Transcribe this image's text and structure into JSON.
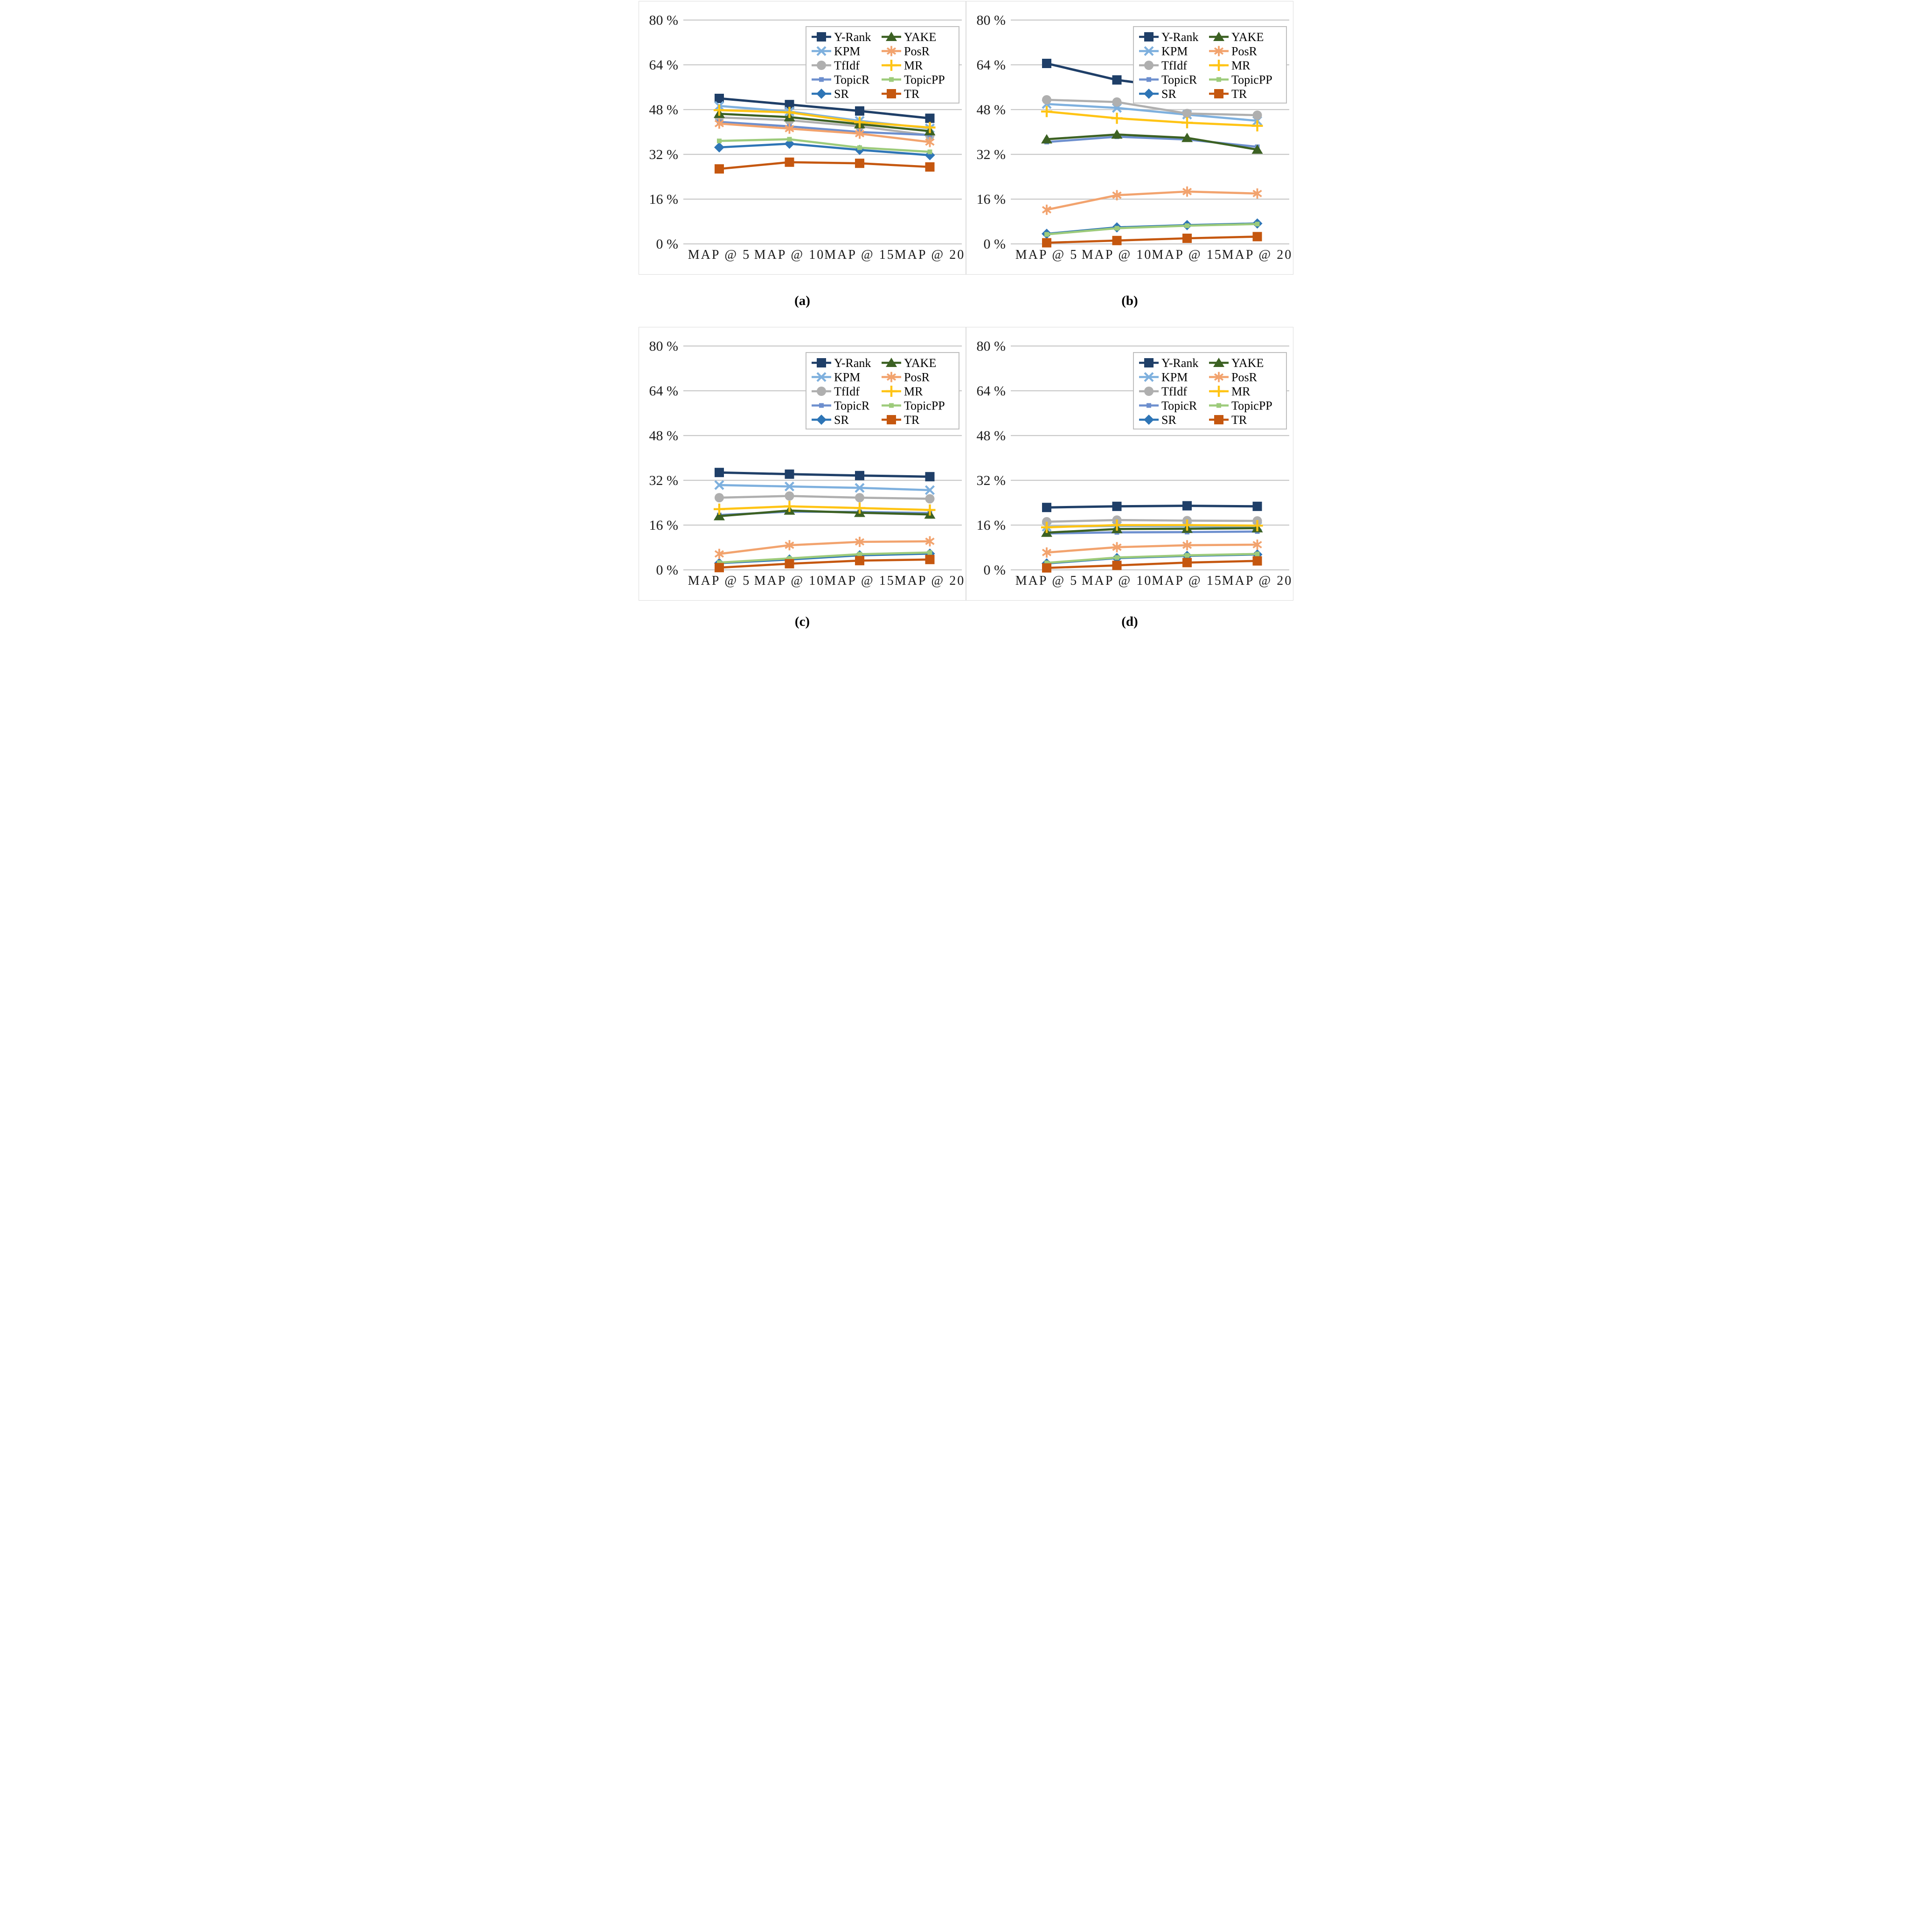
{
  "figure": {
    "captions": {
      "a": "(a)",
      "b": "(b)",
      "c": "(c)",
      "d": "(d)"
    },
    "y_axis_labels": [
      "80 %",
      "64 %",
      "48 %",
      "32 %",
      "16 %",
      "0 %"
    ],
    "x_categories": [
      "MAP @ 5",
      "MAP @ 10",
      "MAP @ 15",
      "MAP @ 20"
    ],
    "grid_color": "#c9c9c9",
    "legend_border_color": "#bfbfbf",
    "legend_rows": [
      [
        "Y-Rank",
        "YAKE"
      ],
      [
        "KPM",
        "PosR"
      ],
      [
        "TfIdf",
        "MR"
      ],
      [
        "TopicR",
        "TopicPP"
      ],
      [
        "SR",
        "TR"
      ]
    ],
    "series_styles": {
      "Y-Rank": {
        "color": "#1f3f68",
        "marker": "square"
      },
      "KPM": {
        "color": "#7eb0de",
        "marker": "x"
      },
      "TfIdf": {
        "color": "#afafaf",
        "marker": "circle"
      },
      "TopicR": {
        "color": "#6d8fce",
        "marker": "small-square"
      },
      "SR": {
        "color": "#2e75b6",
        "marker": "diamond"
      },
      "YAKE": {
        "color": "#3c6123",
        "marker": "triangle"
      },
      "PosR": {
        "color": "#f2a36e",
        "marker": "asterisk"
      },
      "MR": {
        "color": "#ffc415",
        "marker": "plus"
      },
      "TopicPP": {
        "color": "#9dcb7b",
        "marker": "small-square"
      },
      "TR": {
        "color": "#c5570f",
        "marker": "square"
      }
    }
  },
  "chart_data": [
    {
      "type": "line",
      "panel": "a",
      "title": "",
      "xlabel": "",
      "ylabel": "",
      "ylim": [
        0,
        80
      ],
      "ytick_step": 16,
      "grid": true,
      "legend_position": "top-right",
      "categories": [
        "MAP @ 5",
        "MAP @ 10",
        "MAP @ 15",
        "MAP @ 20"
      ],
      "series": [
        {
          "name": "Y-Rank",
          "values": [
            52.0,
            49.8,
            47.5,
            44.9
          ]
        },
        {
          "name": "KPM",
          "values": [
            49.3,
            47.3,
            44.0,
            41.3
          ]
        },
        {
          "name": "TfIdf",
          "values": [
            45.2,
            44.2,
            42.0,
            38.8
          ]
        },
        {
          "name": "TopicR",
          "values": [
            43.6,
            42.0,
            40.0,
            38.9
          ]
        },
        {
          "name": "SR",
          "values": [
            34.5,
            35.8,
            33.6,
            31.7
          ]
        },
        {
          "name": "YAKE",
          "values": [
            46.5,
            45.3,
            42.8,
            40.3
          ]
        },
        {
          "name": "PosR",
          "values": [
            43.0,
            41.2,
            39.4,
            36.4
          ]
        },
        {
          "name": "MR",
          "values": [
            47.8,
            47.0,
            43.5,
            41.6
          ]
        },
        {
          "name": "TopicPP",
          "values": [
            36.8,
            37.4,
            34.4,
            32.9
          ]
        },
        {
          "name": "TR",
          "values": [
            26.8,
            29.2,
            28.8,
            27.5
          ]
        }
      ]
    },
    {
      "type": "line",
      "panel": "b",
      "title": "",
      "xlabel": "",
      "ylabel": "",
      "ylim": [
        0,
        80
      ],
      "ytick_step": 16,
      "grid": true,
      "legend_position": "top-right",
      "categories": [
        "MAP @ 5",
        "MAP @ 10",
        "MAP @ 15",
        "MAP @ 20"
      ],
      "series": [
        {
          "name": "Y-Rank",
          "values": [
            64.5,
            58.6,
            55.3,
            52.8
          ]
        },
        {
          "name": "KPM",
          "values": [
            50.0,
            48.6,
            46.2,
            44.0
          ]
        },
        {
          "name": "TfIdf",
          "values": [
            51.5,
            50.7,
            46.6,
            46.0
          ]
        },
        {
          "name": "TopicR",
          "values": [
            36.4,
            38.3,
            37.3,
            34.7
          ]
        },
        {
          "name": "SR",
          "values": [
            3.6,
            5.9,
            6.7,
            7.3
          ]
        },
        {
          "name": "YAKE",
          "values": [
            37.4,
            39.1,
            37.9,
            33.7
          ]
        },
        {
          "name": "PosR",
          "values": [
            12.2,
            17.4,
            18.7,
            18.0
          ]
        },
        {
          "name": "MR",
          "values": [
            47.3,
            44.9,
            43.3,
            42.2
          ]
        },
        {
          "name": "TopicPP",
          "values": [
            3.4,
            5.6,
            6.5,
            7.1
          ]
        },
        {
          "name": "TR",
          "values": [
            0.4,
            1.2,
            2.0,
            2.6
          ]
        }
      ]
    },
    {
      "type": "line",
      "panel": "c",
      "title": "",
      "xlabel": "",
      "ylabel": "",
      "ylim": [
        0,
        80
      ],
      "ytick_step": 16,
      "grid": true,
      "legend_position": "top-right",
      "categories": [
        "MAP @ 5",
        "MAP @ 10",
        "MAP @ 15",
        "MAP @ 20"
      ],
      "series": [
        {
          "name": "Y-Rank",
          "values": [
            34.8,
            34.2,
            33.7,
            33.3
          ]
        },
        {
          "name": "KPM",
          "values": [
            30.3,
            29.8,
            29.3,
            28.5
          ]
        },
        {
          "name": "TfIdf",
          "values": [
            25.8,
            26.4,
            25.8,
            25.4
          ]
        },
        {
          "name": "TopicR",
          "values": [
            19.6,
            20.8,
            20.7,
            20.3
          ]
        },
        {
          "name": "SR",
          "values": [
            2.4,
            3.7,
            5.2,
            5.8
          ]
        },
        {
          "name": "YAKE",
          "values": [
            19.2,
            21.2,
            20.4,
            19.8
          ]
        },
        {
          "name": "PosR",
          "values": [
            5.7,
            8.8,
            10.0,
            10.2
          ]
        },
        {
          "name": "MR",
          "values": [
            21.7,
            22.7,
            22.1,
            21.4
          ]
        },
        {
          "name": "TopicPP",
          "values": [
            2.6,
            4.1,
            5.6,
            6.2
          ]
        },
        {
          "name": "TR",
          "values": [
            0.8,
            2.2,
            3.3,
            3.7
          ]
        }
      ]
    },
    {
      "type": "line",
      "panel": "d",
      "title": "",
      "xlabel": "",
      "ylabel": "",
      "ylim": [
        0,
        80
      ],
      "ytick_step": 16,
      "grid": true,
      "legend_position": "top-right",
      "categories": [
        "MAP @ 5",
        "MAP @ 10",
        "MAP @ 15",
        "MAP @ 20"
      ],
      "series": [
        {
          "name": "Y-Rank",
          "values": [
            22.3,
            22.7,
            22.9,
            22.7
          ]
        },
        {
          "name": "KPM",
          "values": [
            15.4,
            15.7,
            15.6,
            15.5
          ]
        },
        {
          "name": "TfIdf",
          "values": [
            17.2,
            17.8,
            17.6,
            17.5
          ]
        },
        {
          "name": "TopicR",
          "values": [
            13.0,
            13.4,
            13.5,
            13.7
          ]
        },
        {
          "name": "SR",
          "values": [
            2.3,
            4.2,
            5.0,
            5.5
          ]
        },
        {
          "name": "YAKE",
          "values": [
            13.3,
            14.6,
            14.7,
            14.9
          ]
        },
        {
          "name": "PosR",
          "values": [
            6.2,
            8.1,
            8.8,
            9.0
          ]
        },
        {
          "name": "MR",
          "values": [
            15.2,
            16.0,
            16.0,
            15.8
          ]
        },
        {
          "name": "TopicPP",
          "values": [
            2.5,
            4.4,
            5.2,
            5.7
          ]
        },
        {
          "name": "TR",
          "values": [
            0.7,
            1.6,
            2.6,
            3.2
          ]
        }
      ]
    }
  ]
}
